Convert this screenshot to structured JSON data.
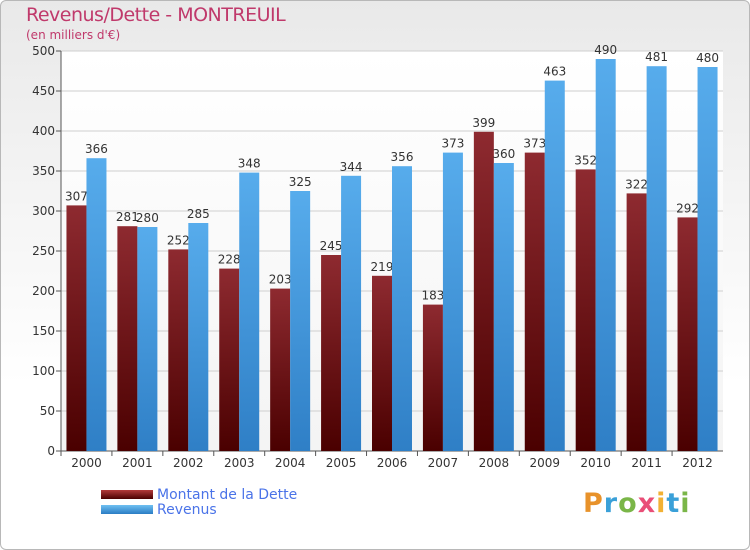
{
  "chart_data": {
    "type": "bar",
    "title": "Revenus/Dette - MONTREUIL",
    "subtitle": "(en milliers d'€)",
    "categories": [
      "2000",
      "2001",
      "2002",
      "2003",
      "2004",
      "2005",
      "2006",
      "2007",
      "2008",
      "2009",
      "2010",
      "2011",
      "2012"
    ],
    "series": [
      {
        "name": "Montant de la Dette",
        "color": "#6b1010",
        "values": [
          307,
          281,
          252,
          228,
          203,
          245,
          219,
          183,
          399,
          373,
          352,
          322,
          292
        ]
      },
      {
        "name": "Revenus",
        "color": "#3f9be0",
        "values": [
          366,
          280,
          285,
          348,
          325,
          344,
          356,
          373,
          360,
          463,
          490,
          481,
          480
        ]
      }
    ],
    "yticks": [
      0,
      50,
      100,
      150,
      200,
      250,
      300,
      350,
      400,
      450,
      500
    ],
    "ylim": [
      0,
      500
    ],
    "grid": true,
    "legend": "bottom-left"
  },
  "logo": {
    "letters": [
      "P",
      "r",
      "o",
      "x",
      "i",
      "t",
      "i"
    ],
    "colors": [
      "#e8922a",
      "#3aa0d8",
      "#7ab648",
      "#e94e77",
      "#f2b134",
      "#3aa0d8",
      "#7ab648"
    ]
  }
}
